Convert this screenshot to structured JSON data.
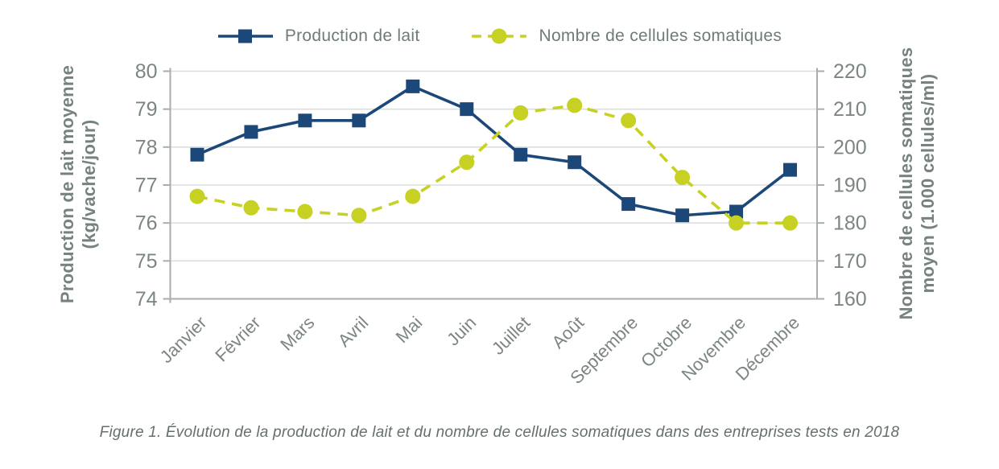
{
  "legend": {
    "items": [
      {
        "label": "Production de lait"
      },
      {
        "label": "Nombre de cellules somatiques"
      }
    ]
  },
  "caption": "Figure 1. Évolution de la production de lait et du nombre de cellules somatiques dans des entreprises tests en 2018",
  "colors": {
    "milk_blue": "#1b4779",
    "cell_yellow": "#c6d123",
    "tick_text": "#7b8683",
    "axis_title_text": "#76827f",
    "gridline": "#dcdedd",
    "axis_line": "#a8aeab",
    "legend_text": "#6f7b78",
    "caption_text": "#656f6c"
  },
  "chart_data": {
    "type": "line",
    "title": "",
    "categories": [
      "Janvier",
      "Février",
      "Mars",
      "Avril",
      "Mai",
      "Juin",
      "Juillet",
      "Août",
      "Septembre",
      "Octobre",
      "Novembre",
      "Décembre"
    ],
    "series": [
      {
        "name": "Production de lait",
        "axis": "left",
        "color": "#1b4779",
        "marker": "square",
        "line_style": "solid",
        "values": [
          77.8,
          78.4,
          78.7,
          78.7,
          79.6,
          79.0,
          77.8,
          77.6,
          76.5,
          76.2,
          76.3,
          77.4
        ]
      },
      {
        "name": "Nombre de cellules somatiques",
        "axis": "right",
        "color": "#c6d123",
        "marker": "circle",
        "line_style": "dashed",
        "values": [
          187,
          184,
          183,
          182,
          187,
          196,
          209,
          211,
          207,
          192,
          180,
          180
        ]
      }
    ],
    "left_axis": {
      "title_lines": [
        "Production de lait moyenne",
        "(kg/vache/jour)"
      ],
      "min": 74,
      "max": 80,
      "tick_step": 1,
      "ticks": [
        74,
        75,
        76,
        77,
        78,
        79,
        80
      ]
    },
    "right_axis": {
      "title_lines": [
        "Nombre de cellules somatiques",
        "moyen (1.000 cellules/ml)"
      ],
      "min": 160,
      "max": 220,
      "tick_step": 10,
      "ticks": [
        160,
        170,
        180,
        190,
        200,
        210,
        220
      ]
    },
    "grid": true,
    "legend_position": "top"
  }
}
